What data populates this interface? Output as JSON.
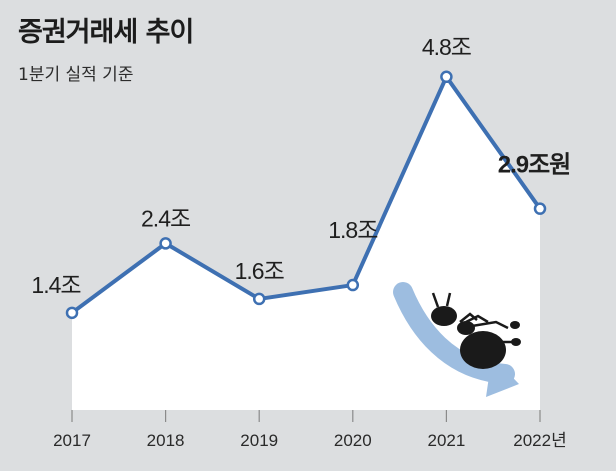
{
  "header": {
    "title": "증권거래세 추이",
    "subtitle": "1분기 실적 기준"
  },
  "colors": {
    "background": "#dcdee0",
    "area": "#ffffff",
    "line": "#3e70b2",
    "axis": "#8a8a8a",
    "arrow": "#9dbde0",
    "ant": "#1a1a1a"
  },
  "illustration": {
    "icon": "ant-falling-icon"
  },
  "chart_data": {
    "type": "line",
    "categories": [
      "2017",
      "2018",
      "2019",
      "2020",
      "2021",
      "2022년"
    ],
    "values": [
      1.4,
      2.4,
      1.6,
      1.8,
      4.8,
      2.9
    ],
    "data_labels": [
      "1.4조",
      "2.4조",
      "1.6조",
      "1.8조",
      "4.8조",
      "2.9조원"
    ],
    "title": "증권거래세 추이",
    "subtitle": "1분기 실적 기준",
    "ylim": [
      0,
      5.33
    ],
    "grid": false,
    "legend": "none"
  }
}
